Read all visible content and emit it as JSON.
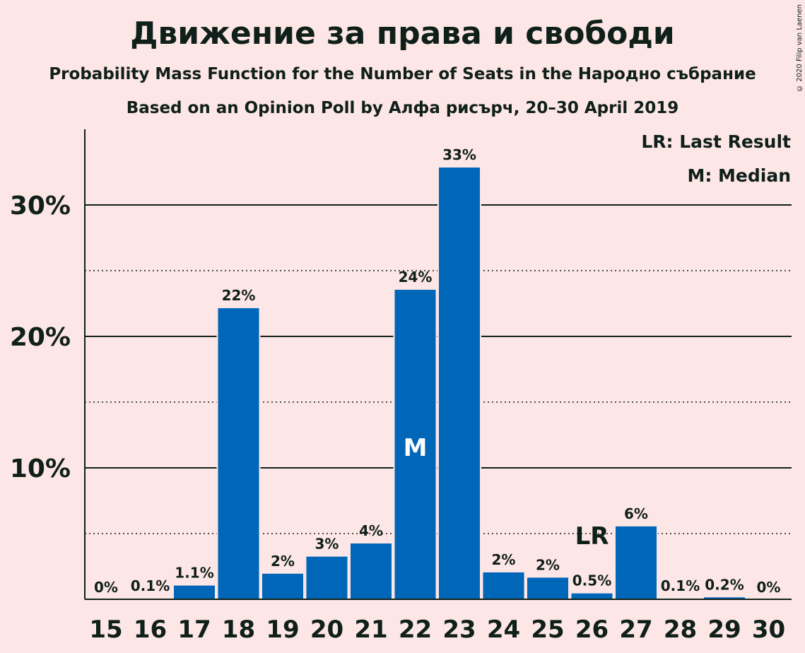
{
  "chart_data": {
    "type": "bar",
    "title": "Движение за права и свободи",
    "subtitle_1": "Probability Mass Function for the Number of Seats in the Народно събрание",
    "subtitle_2": "Based on an Opinion Poll by Алфа рисърч, 20–30 April 2019",
    "copyright": "© 2020 Filip van Laenen",
    "legend": {
      "last_result": "LR: Last Result",
      "median": "M: Median"
    },
    "categories": [
      "15",
      "16",
      "17",
      "18",
      "19",
      "20",
      "21",
      "22",
      "23",
      "24",
      "25",
      "26",
      "27",
      "28",
      "29",
      "30"
    ],
    "values": [
      0,
      0.1,
      1.1,
      22.2,
      2.0,
      3.3,
      4.3,
      23.6,
      32.9,
      2.1,
      1.7,
      0.5,
      5.6,
      0.1,
      0.2,
      0
    ],
    "labels": [
      "0%",
      "0.1%",
      "1.1%",
      "22%",
      "2%",
      "3%",
      "4%",
      "24%",
      "33%",
      "2%",
      "2%",
      "0.5%",
      "6%",
      "0.1%",
      "0.2%",
      "0%"
    ],
    "ylim": [
      0,
      35
    ],
    "yticks": [
      10,
      20,
      30
    ],
    "ytick_labels": [
      "10%",
      "20%",
      "30%"
    ],
    "minor_gridlines": [
      5,
      15,
      25
    ],
    "median_index": 7,
    "median_label": "M",
    "last_result_index": 11,
    "last_result_label": "LR",
    "bar_color": "#0066b8",
    "background": "#fde6e6"
  }
}
